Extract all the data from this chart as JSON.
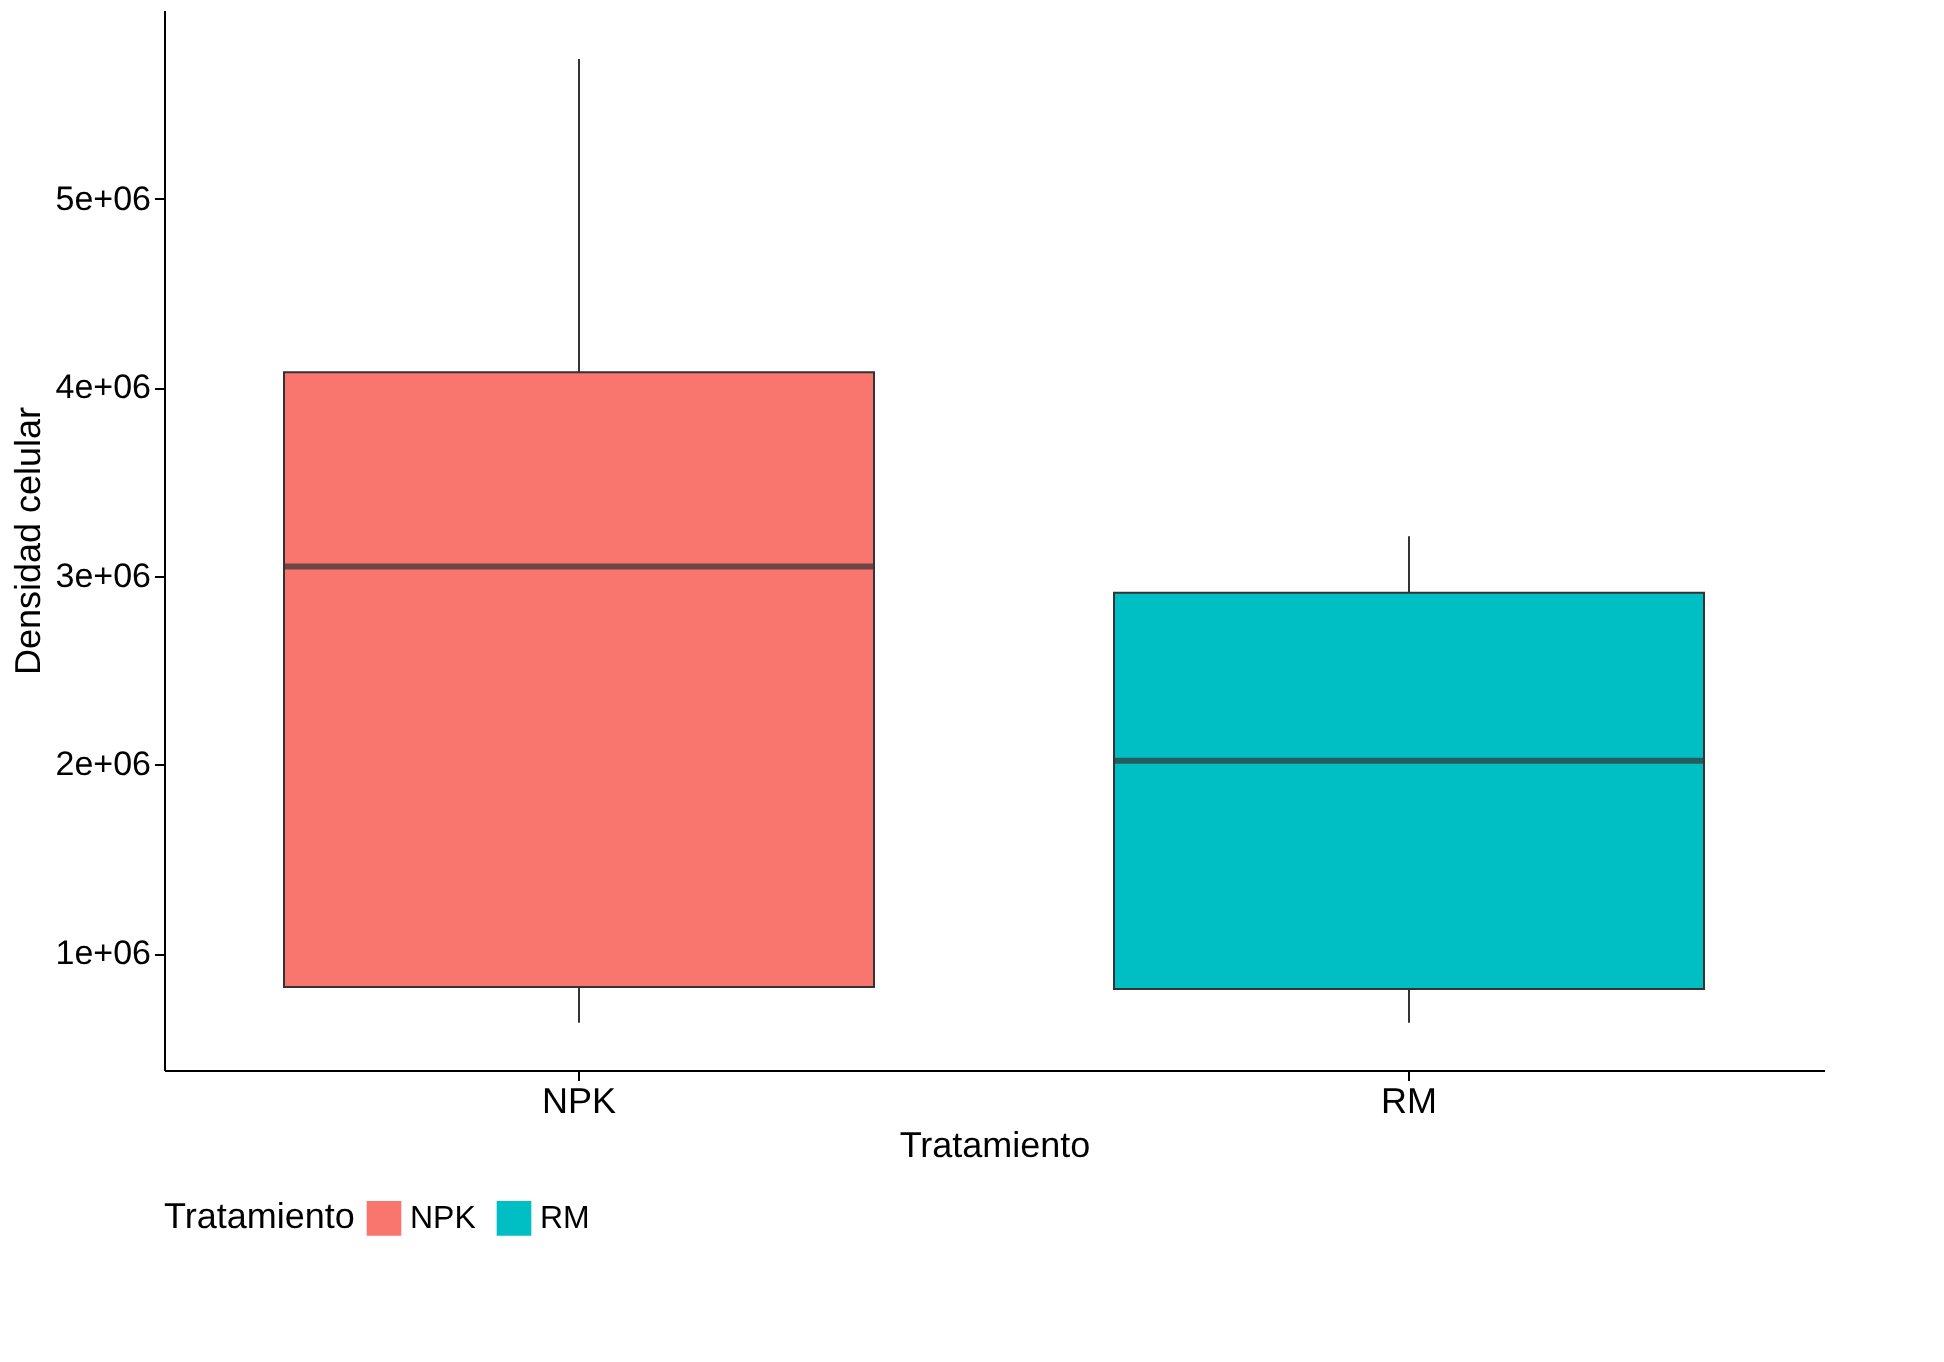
{
  "chart_data": {
    "type": "box",
    "xlabel": "Tratamiento",
    "ylabel": "Densidad celular",
    "legend_title": "Tratamiento",
    "legend": "bottom",
    "grid": false,
    "categories": [
      "NPK",
      "RM"
    ],
    "series": [
      {
        "name": "NPK",
        "color": "#f8766d",
        "boxes": [
          {
            "low": 630000,
            "q1": 820000,
            "median": 3050000,
            "q3": 4080000,
            "high": 5740000
          },
          null
        ]
      },
      {
        "name": "RM",
        "color": "#00bfc4",
        "boxes": [
          null,
          {
            "low": 630000,
            "q1": 810000,
            "median": 2020000,
            "q3": 2910000,
            "high": 3210000
          }
        ]
      }
    ],
    "ylim": [
      380000,
      6000000
    ],
    "yticks": [
      {
        "value": 1000000,
        "label": "1e+06"
      },
      {
        "value": 2000000,
        "label": "2e+06"
      },
      {
        "value": 3000000,
        "label": "3e+06"
      },
      {
        "value": 4000000,
        "label": "4e+06"
      },
      {
        "value": 5000000,
        "label": "5e+06"
      }
    ]
  }
}
